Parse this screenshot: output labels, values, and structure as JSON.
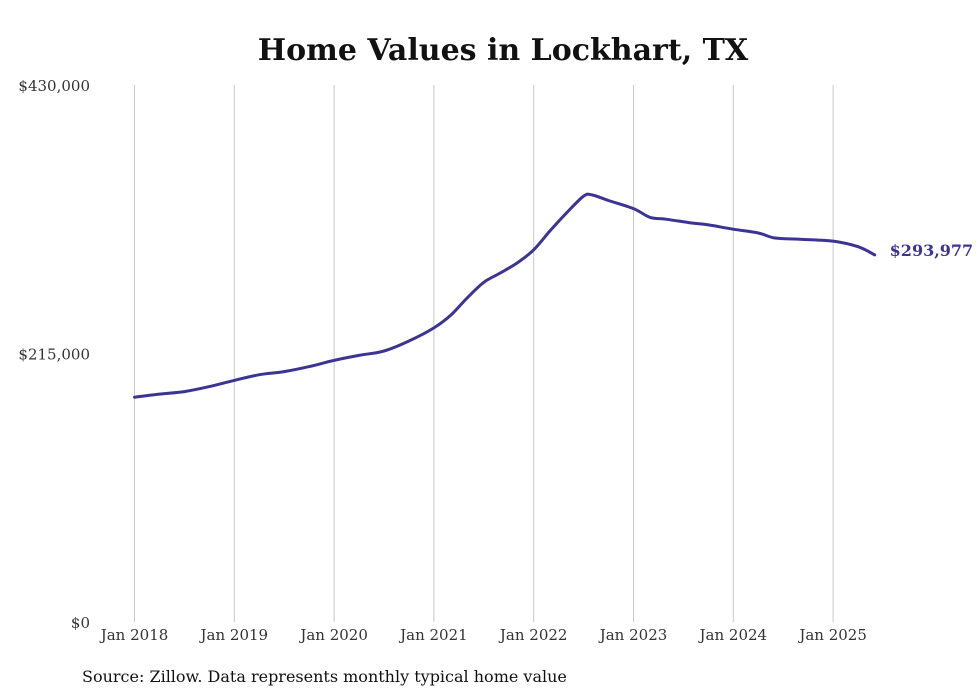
{
  "chart_data": {
    "type": "line",
    "title": "Home Values in Lockhart, TX",
    "xlabel": "",
    "ylabel": "",
    "ylim": [
      0,
      430000
    ],
    "y_ticks": [
      {
        "value": 0,
        "label": "$0"
      },
      {
        "value": 215000,
        "label": "$215,000"
      },
      {
        "value": 430000,
        "label": "$430,000"
      }
    ],
    "x_ticks": [
      {
        "value": "2018-01",
        "label": "Jan 2018"
      },
      {
        "value": "2019-01",
        "label": "Jan 2019"
      },
      {
        "value": "2020-01",
        "label": "Jan 2020"
      },
      {
        "value": "2021-01",
        "label": "Jan 2021"
      },
      {
        "value": "2022-01",
        "label": "Jan 2022"
      },
      {
        "value": "2023-01",
        "label": "Jan 2023"
      },
      {
        "value": "2024-01",
        "label": "Jan 2024"
      },
      {
        "value": "2025-01",
        "label": "Jan 2025"
      }
    ],
    "grid": {
      "vertical": true,
      "horizontal": false
    },
    "line_color": "#3b3494",
    "end_label": "$293,977",
    "series": [
      {
        "name": "",
        "x": [
          "2018-01",
          "2018-04",
          "2018-07",
          "2018-10",
          "2019-01",
          "2019-04",
          "2019-07",
          "2019-10",
          "2020-01",
          "2020-04",
          "2020-07",
          "2020-10",
          "2021-01",
          "2021-03",
          "2021-05",
          "2021-07",
          "2021-09",
          "2021-11",
          "2022-01",
          "2022-03",
          "2022-05",
          "2022-07",
          "2022-08",
          "2022-10",
          "2023-01",
          "2023-03",
          "2023-05",
          "2023-08",
          "2023-10",
          "2024-01",
          "2024-04",
          "2024-06",
          "2024-09",
          "2025-01",
          "2025-04",
          "2025-06"
        ],
        "y": [
          180000,
          182500,
          184500,
          188500,
          193500,
          198000,
          200500,
          204500,
          209500,
          213500,
          217000,
          225000,
          235500,
          245500,
          259500,
          272000,
          279500,
          287500,
          298000,
          313500,
          328000,
          341000,
          342000,
          337500,
          331000,
          324000,
          322500,
          319500,
          318000,
          314500,
          311500,
          307500,
          306500,
          305000,
          300500,
          293977
        ]
      }
    ]
  },
  "source": "Source: Zillow. Data represents monthly typical home value"
}
